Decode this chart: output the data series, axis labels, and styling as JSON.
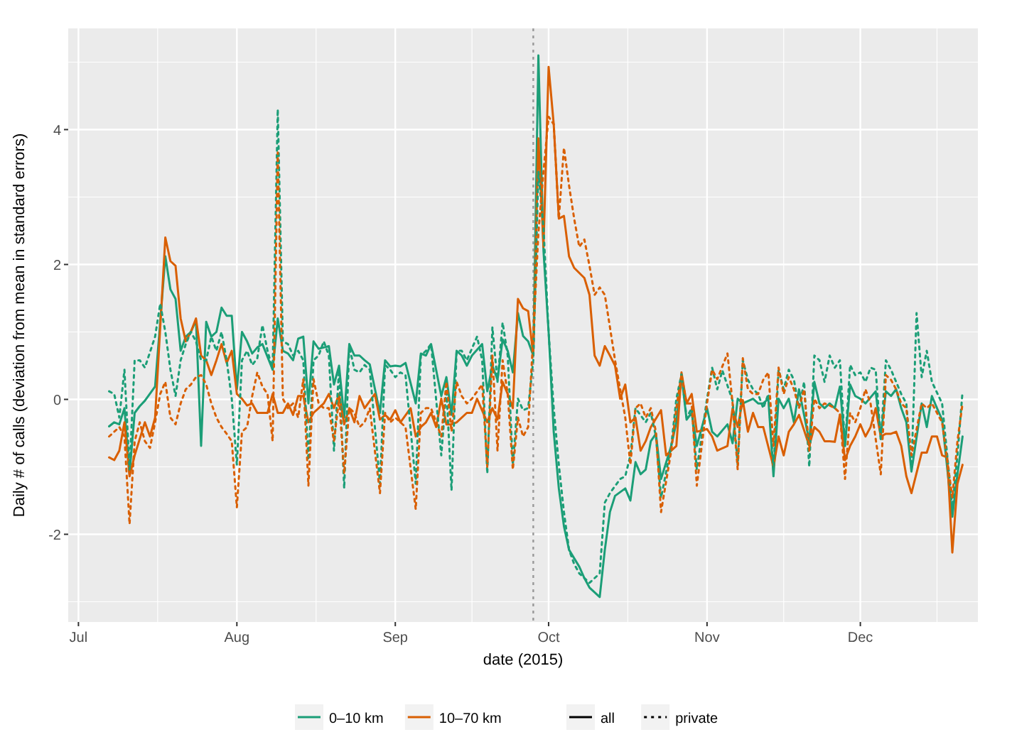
{
  "chart_data": {
    "type": "line",
    "xlabel": "date (2015)",
    "ylabel": "Daily # of calls (deviation from mean in standard errors)",
    "xlim": [
      "2015-06-29",
      "2015-12-24"
    ],
    "ylim": [
      -3.3,
      5.5
    ],
    "xticks": [
      {
        "value": "2015-07-01",
        "label": "Jul"
      },
      {
        "value": "2015-08-01",
        "label": "Aug"
      },
      {
        "value": "2015-09-01",
        "label": "Sep"
      },
      {
        "value": "2015-10-01",
        "label": "Oct"
      },
      {
        "value": "2015-11-01",
        "label": "Nov"
      },
      {
        "value": "2015-12-01",
        "label": "Dec"
      }
    ],
    "yticks": [
      -2,
      0,
      2,
      4
    ],
    "grid": true,
    "legend": "bottom",
    "annotations": [
      "all",
      "private"
    ],
    "ref_lines": [
      {
        "axis": "x",
        "value": "2015-09-28",
        "color": "#999999",
        "line_style": "dotted"
      }
    ],
    "series": [
      {
        "name": "0–10 km",
        "color": "#1b9e77",
        "line_style": "solid",
        "x": [
          "2015-07-07",
          "2015-07-08",
          "2015-07-09",
          "2015-07-10",
          "2015-07-11",
          "2015-07-12",
          "2015-07-13",
          "2015-07-14",
          "2015-07-16",
          "2015-07-18",
          "2015-07-19",
          "2015-07-20",
          "2015-07-21",
          "2015-07-22",
          "2015-07-23",
          "2015-07-24",
          "2015-07-25",
          "2015-07-26",
          "2015-07-27",
          "2015-07-28",
          "2015-07-29",
          "2015-07-30",
          "2015-07-31",
          "2015-08-01",
          "2015-08-02",
          "2015-08-03",
          "2015-08-04",
          "2015-08-05",
          "2015-08-06",
          "2015-08-08",
          "2015-08-09",
          "2015-08-10",
          "2015-08-11",
          "2015-08-12",
          "2015-08-13",
          "2015-08-14",
          "2015-08-15",
          "2015-08-16",
          "2015-08-17",
          "2015-08-18",
          "2015-08-19",
          "2015-08-20",
          "2015-08-21",
          "2015-08-22",
          "2015-08-23",
          "2015-08-24",
          "2015-08-25",
          "2015-08-26",
          "2015-08-27",
          "2015-08-29",
          "2015-08-30",
          "2015-08-31",
          "2015-09-01",
          "2015-09-02",
          "2015-09-03",
          "2015-09-05",
          "2015-09-06",
          "2015-09-07",
          "2015-09-08",
          "2015-09-10",
          "2015-09-11",
          "2015-09-12",
          "2015-09-13",
          "2015-09-14",
          "2015-09-15",
          "2015-09-16",
          "2015-09-18",
          "2015-09-19",
          "2015-09-20",
          "2015-09-21",
          "2015-09-22",
          "2015-09-23",
          "2015-09-24",
          "2015-09-25",
          "2015-09-26",
          "2015-09-27",
          "2015-09-28",
          "2015-09-29",
          "2015-09-30",
          "2015-10-01",
          "2015-10-02",
          "2015-10-03",
          "2015-10-04",
          "2015-10-05",
          "2015-10-07",
          "2015-10-08",
          "2015-10-09",
          "2015-10-11",
          "2015-10-12",
          "2015-10-13",
          "2015-10-14",
          "2015-10-16",
          "2015-10-17",
          "2015-10-18",
          "2015-10-19",
          "2015-10-20",
          "2015-10-21",
          "2015-10-22",
          "2015-10-23",
          "2015-10-25",
          "2015-10-26",
          "2015-10-27",
          "2015-10-28",
          "2015-10-29",
          "2015-10-30",
          "2015-11-01",
          "2015-11-02",
          "2015-11-03",
          "2015-11-05",
          "2015-11-06",
          "2015-11-07",
          "2015-11-08",
          "2015-11-10",
          "2015-11-11",
          "2015-11-12",
          "2015-11-13",
          "2015-11-14",
          "2015-11-15",
          "2015-11-16",
          "2015-11-17",
          "2015-11-18",
          "2015-11-19",
          "2015-11-21",
          "2015-11-22",
          "2015-11-23",
          "2015-11-24",
          "2015-11-25",
          "2015-11-26",
          "2015-11-27",
          "2015-11-28",
          "2015-11-29",
          "2015-11-30",
          "2015-12-01",
          "2015-12-02",
          "2015-12-04",
          "2015-12-05",
          "2015-12-06",
          "2015-12-07",
          "2015-12-08",
          "2015-12-09",
          "2015-12-10",
          "2015-12-11",
          "2015-12-13",
          "2015-12-14",
          "2015-12-15",
          "2015-12-16",
          "2015-12-17",
          "2015-12-19",
          "2015-12-20",
          "2015-12-21"
        ],
        "values": [
          -0.4,
          -0.34,
          -0.37,
          -0.13,
          -1.1,
          -0.2,
          -0.1,
          -0.02,
          0.19,
          2.12,
          1.63,
          1.49,
          0.72,
          0.93,
          1.0,
          1.17,
          -0.69,
          1.15,
          0.93,
          1.0,
          1.36,
          1.24,
          1.24,
          0.15,
          1.0,
          0.86,
          0.68,
          0.77,
          0.82,
          0.44,
          1.2,
          0.72,
          0.68,
          0.58,
          0.9,
          0.93,
          -0.06,
          0.86,
          0.75,
          0.77,
          0.79,
          0.22,
          0.5,
          -0.27,
          0.82,
          0.65,
          0.65,
          0.58,
          0.52,
          -0.2,
          0.58,
          0.49,
          0.5,
          0.49,
          0.54,
          -0.06,
          0.68,
          0.65,
          0.82,
          0.05,
          0.33,
          -0.23,
          0.72,
          0.65,
          0.5,
          0.65,
          0.82,
          0.12,
          0.5,
          0.29,
          0.89,
          0.72,
          0.4,
          1.28,
          0.94,
          0.86,
          0.65,
          5.1,
          2.2,
          1.0,
          -0.48,
          -1.32,
          -1.88,
          -2.23,
          -2.48,
          -2.65,
          -2.79,
          -2.93,
          -2.23,
          -1.67,
          -1.43,
          -1.32,
          -1.5,
          -0.93,
          -1.11,
          -1.04,
          -0.62,
          -0.51,
          -1.18,
          -0.69,
          -0.34,
          0.37,
          -0.3,
          -0.2,
          -0.69,
          -0.13,
          -0.48,
          -0.55,
          -0.37,
          -0.65,
          0.01,
          -0.06,
          0.01,
          -0.06,
          -0.06,
          0.01,
          -1.14,
          0.01,
          -0.13,
          0.01,
          -0.34,
          0.15,
          -0.62,
          0.26,
          -0.06,
          -0.13,
          -0.06,
          -0.13,
          0.19,
          -0.69,
          0.22,
          0.05,
          0.01,
          -0.06,
          0.12,
          -0.55,
          0.12,
          0.05,
          0.15,
          -0.13,
          -0.34,
          -1.07,
          -0.06,
          -0.41,
          0.05,
          -0.13,
          -0.3,
          -1.74,
          -1.11,
          -0.55
        ]
      },
      {
        "name": "10–70 km",
        "color": "#d95f02",
        "line_style": "solid",
        "x": [
          "2015-07-07",
          "2015-07-08",
          "2015-07-09",
          "2015-07-10",
          "2015-07-11",
          "2015-07-12",
          "2015-07-14",
          "2015-07-15",
          "2015-07-16",
          "2015-07-18",
          "2015-07-19",
          "2015-07-20",
          "2015-07-21",
          "2015-07-22",
          "2015-07-23",
          "2015-07-24",
          "2015-07-25",
          "2015-07-26",
          "2015-07-27",
          "2015-07-28",
          "2015-07-29",
          "2015-07-30",
          "2015-07-31",
          "2015-08-01",
          "2015-08-02",
          "2015-08-03",
          "2015-08-04",
          "2015-08-05",
          "2015-08-07",
          "2015-08-08",
          "2015-08-09",
          "2015-08-10",
          "2015-08-11",
          "2015-08-12",
          "2015-08-13",
          "2015-08-14",
          "2015-08-15",
          "2015-08-16",
          "2015-08-17",
          "2015-08-18",
          "2015-08-19",
          "2015-08-20",
          "2015-08-21",
          "2015-08-22",
          "2015-08-23",
          "2015-08-24",
          "2015-08-25",
          "2015-08-26",
          "2015-08-28",
          "2015-08-29",
          "2015-08-30",
          "2015-08-31",
          "2015-09-01",
          "2015-09-02",
          "2015-09-04",
          "2015-09-05",
          "2015-09-06",
          "2015-09-07",
          "2015-09-08",
          "2015-09-09",
          "2015-09-10",
          "2015-09-11",
          "2015-09-12",
          "2015-09-13",
          "2015-09-15",
          "2015-09-16",
          "2015-09-17",
          "2015-09-19",
          "2015-09-20",
          "2015-09-21",
          "2015-09-22",
          "2015-09-23",
          "2015-09-24",
          "2015-09-25",
          "2015-09-26",
          "2015-09-27",
          "2015-09-28",
          "2015-09-29",
          "2015-09-30",
          "2015-10-01",
          "2015-10-02",
          "2015-10-03",
          "2015-10-04",
          "2015-10-05",
          "2015-10-06",
          "2015-10-08",
          "2015-10-09",
          "2015-10-10",
          "2015-10-11",
          "2015-10-12",
          "2015-10-13",
          "2015-10-14",
          "2015-10-15",
          "2015-10-16",
          "2015-10-17",
          "2015-10-18",
          "2015-10-19",
          "2015-10-20",
          "2015-10-21",
          "2015-10-23",
          "2015-10-24",
          "2015-10-25",
          "2015-10-26",
          "2015-10-27",
          "2015-10-28",
          "2015-10-29",
          "2015-10-30",
          "2015-11-01",
          "2015-11-02",
          "2015-11-03",
          "2015-11-05",
          "2015-11-06",
          "2015-11-07",
          "2015-11-08",
          "2015-11-09",
          "2015-11-10",
          "2015-11-11",
          "2015-11-12",
          "2015-11-14",
          "2015-11-15",
          "2015-11-16",
          "2015-11-17",
          "2015-11-18",
          "2015-11-19",
          "2015-11-21",
          "2015-11-22",
          "2015-11-23",
          "2015-11-24",
          "2015-11-25",
          "2015-11-26",
          "2015-11-27",
          "2015-11-28",
          "2015-11-29",
          "2015-11-30",
          "2015-12-01",
          "2015-12-02",
          "2015-12-03",
          "2015-12-04",
          "2015-12-05",
          "2015-12-06",
          "2015-12-07",
          "2015-12-08",
          "2015-12-09",
          "2015-12-10",
          "2015-12-11",
          "2015-12-13",
          "2015-12-14",
          "2015-12-15",
          "2015-12-16",
          "2015-12-17",
          "2015-12-18",
          "2015-12-19",
          "2015-12-20",
          "2015-12-21"
        ],
        "values": [
          -0.86,
          -0.9,
          -0.76,
          -0.34,
          -1.14,
          -0.83,
          -0.34,
          -0.55,
          -0.27,
          2.4,
          2.05,
          1.98,
          1.2,
          0.86,
          1.0,
          1.2,
          0.65,
          0.58,
          0.36,
          0.58,
          0.82,
          0.54,
          0.72,
          0.08,
          0.01,
          -0.09,
          -0.06,
          -0.2,
          -0.2,
          0.08,
          -0.2,
          -0.2,
          -0.06,
          -0.23,
          0.05,
          0.05,
          -0.34,
          -0.2,
          -0.13,
          -0.06,
          0.08,
          -0.13,
          0.08,
          -0.37,
          -0.13,
          -0.34,
          0.05,
          -0.13,
          0.08,
          -0.3,
          -0.23,
          -0.3,
          -0.16,
          -0.34,
          -0.13,
          -0.55,
          -0.41,
          -0.34,
          -0.2,
          -0.41,
          0.01,
          -0.37,
          -0.37,
          -0.34,
          -0.2,
          -0.2,
          0.01,
          -0.34,
          -0.13,
          -0.3,
          0.26,
          0.08,
          -0.13,
          1.49,
          1.35,
          1.31,
          0.65,
          3.87,
          2.26,
          4.93,
          4.08,
          2.68,
          2.72,
          2.12,
          1.95,
          1.8,
          1.55,
          0.65,
          0.5,
          0.79,
          0.65,
          0.5,
          0.01,
          0.22,
          -0.34,
          -0.27,
          -0.76,
          -0.62,
          -0.41,
          -0.16,
          -0.83,
          -0.76,
          -0.69,
          0.4,
          -0.06,
          0.08,
          -0.48,
          -0.44,
          -0.55,
          -0.76,
          -0.69,
          -0.13,
          -0.41,
          -0.01,
          -0.48,
          -0.2,
          -0.41,
          -0.41,
          -1.0,
          -0.55,
          -0.83,
          -0.48,
          -0.37,
          -0.23,
          -0.69,
          -0.41,
          -0.48,
          -0.62,
          -0.62,
          -0.63,
          -0.23,
          -0.9,
          -0.69,
          -0.55,
          -0.37,
          -0.55,
          -0.41,
          -0.13,
          -0.55,
          -0.51,
          -0.51,
          -0.48,
          -0.69,
          -1.14,
          -1.39,
          -0.79,
          -0.79,
          -0.55,
          -0.55,
          -0.83,
          -0.86,
          -2.27,
          -1.25,
          -0.97
        ]
      },
      {
        "color": "#1b9e77",
        "line_style": "dotted",
        "x": [
          "2015-07-07",
          "2015-07-08",
          "2015-07-09",
          "2015-07-10",
          "2015-07-11",
          "2015-07-12",
          "2015-07-13",
          "2015-07-14",
          "2015-07-16",
          "2015-07-17",
          "2015-07-18",
          "2015-07-19",
          "2015-07-20",
          "2015-07-21",
          "2015-07-22",
          "2015-07-23",
          "2015-07-24",
          "2015-07-25",
          "2015-07-26",
          "2015-07-27",
          "2015-07-28",
          "2015-07-29",
          "2015-07-30",
          "2015-07-31",
          "2015-08-01",
          "2015-08-02",
          "2015-08-03",
          "2015-08-04",
          "2015-08-05",
          "2015-08-06",
          "2015-08-07",
          "2015-08-08",
          "2015-08-09",
          "2015-08-10",
          "2015-08-11",
          "2015-08-12",
          "2015-08-13",
          "2015-08-14",
          "2015-08-15",
          "2015-08-16",
          "2015-08-17",
          "2015-08-18",
          "2015-08-19",
          "2015-08-20",
          "2015-08-21",
          "2015-08-22",
          "2015-08-23",
          "2015-08-24",
          "2015-08-25",
          "2015-08-26",
          "2015-08-27",
          "2015-08-29",
          "2015-08-30",
          "2015-08-31",
          "2015-09-01",
          "2015-09-02",
          "2015-09-03",
          "2015-09-05",
          "2015-09-06",
          "2015-09-07",
          "2015-09-08",
          "2015-09-10",
          "2015-09-11",
          "2015-09-12",
          "2015-09-13",
          "2015-09-14",
          "2015-09-15",
          "2015-09-17",
          "2015-09-18",
          "2015-09-19",
          "2015-09-20",
          "2015-09-21",
          "2015-09-22",
          "2015-09-23",
          "2015-09-24",
          "2015-09-25",
          "2015-09-26",
          "2015-09-27",
          "2015-09-28",
          "2015-09-29",
          "2015-09-30",
          "2015-10-01",
          "2015-10-02",
          "2015-10-03",
          "2015-10-04",
          "2015-10-05",
          "2015-10-06",
          "2015-10-07",
          "2015-10-09",
          "2015-10-11",
          "2015-10-12",
          "2015-10-13",
          "2015-10-15",
          "2015-10-16",
          "2015-10-17",
          "2015-10-18",
          "2015-10-20",
          "2015-10-21",
          "2015-10-22",
          "2015-10-23",
          "2015-10-25",
          "2015-10-26",
          "2015-10-27",
          "2015-10-28",
          "2015-10-29",
          "2015-10-30",
          "2015-11-01",
          "2015-11-02",
          "2015-11-03",
          "2015-11-04",
          "2015-11-06",
          "2015-11-07",
          "2015-11-08",
          "2015-11-09",
          "2015-11-10",
          "2015-11-11",
          "2015-11-12",
          "2015-11-13",
          "2015-11-14",
          "2015-11-15",
          "2015-11-16",
          "2015-11-17",
          "2015-11-18",
          "2015-11-19",
          "2015-11-20",
          "2015-11-21",
          "2015-11-22",
          "2015-11-23",
          "2015-11-24",
          "2015-11-25",
          "2015-11-26",
          "2015-11-27",
          "2015-11-28",
          "2015-11-29",
          "2015-11-30",
          "2015-12-01",
          "2015-12-02",
          "2015-12-03",
          "2015-12-04",
          "2015-12-05",
          "2015-12-06",
          "2015-12-07",
          "2015-12-08",
          "2015-12-09",
          "2015-12-10",
          "2015-12-11",
          "2015-12-12",
          "2015-12-13",
          "2015-12-14",
          "2015-12-15",
          "2015-12-17",
          "2015-12-19",
          "2015-12-20",
          "2015-12-21"
        ],
        "values": [
          0.12,
          0.08,
          -0.27,
          0.44,
          -1.04,
          0.58,
          0.58,
          0.47,
          0.93,
          1.42,
          1.0,
          0.44,
          0.05,
          0.58,
          0.82,
          1.0,
          0.86,
          0.58,
          0.58,
          0.93,
          0.72,
          1.0,
          0.58,
          0.01,
          -0.97,
          0.58,
          0.72,
          0.51,
          0.61,
          1.1,
          0.72,
          0.44,
          4.3,
          0.86,
          0.82,
          0.65,
          0.72,
          0.58,
          -0.9,
          0.58,
          0.65,
          0.86,
          0.65,
          -0.76,
          0.44,
          -1.32,
          0.79,
          0.44,
          0.4,
          0.51,
          0.44,
          -1.25,
          0.51,
          0.44,
          0.33,
          0.4,
          0.36,
          -1.25,
          0.65,
          0.72,
          0.82,
          -0.83,
          0.15,
          -1.35,
          0.72,
          0.72,
          0.58,
          0.93,
          0.58,
          -1.1,
          1.07,
          0.26,
          1.14,
          0.65,
          -0.97,
          0.01,
          -0.16,
          -0.13,
          0.58,
          3.38,
          2.54,
          1.0,
          -0.13,
          -0.97,
          -1.67,
          -2.23,
          -2.44,
          -2.58,
          -2.72,
          -2.58,
          -1.53,
          -1.39,
          -1.18,
          -1.14,
          -0.83,
          -0.13,
          -0.34,
          -0.2,
          -0.55,
          -1.46,
          -0.69,
          0.01,
          0.37,
          -0.27,
          -0.13,
          -1.04,
          0.01,
          0.47,
          0.15,
          0.43,
          -0.02,
          -0.97,
          0.58,
          0.29,
          0.15,
          0.08,
          -0.13,
          0.08,
          -1.04,
          0.44,
          0.15,
          0.44,
          0.29,
          -0.13,
          0.26,
          -1.0,
          0.65,
          0.58,
          0.26,
          0.65,
          0.47,
          0.58,
          -0.69,
          0.51,
          0.36,
          0.4,
          0.26,
          0.47,
          0.44,
          -0.62,
          0.58,
          0.44,
          0.26,
          0.08,
          -0.06,
          -1.04,
          1.28,
          0.33,
          0.72,
          0.26,
          -0.06,
          -1.6,
          -0.83,
          0.12
        ]
      },
      {
        "color": "#d95f02",
        "line_style": "dotted",
        "x": [
          "2015-07-07",
          "2015-07-08",
          "2015-07-09",
          "2015-07-10",
          "2015-07-11",
          "2015-07-12",
          "2015-07-13",
          "2015-07-14",
          "2015-07-15",
          "2015-07-16",
          "2015-07-17",
          "2015-07-18",
          "2015-07-19",
          "2015-07-20",
          "2015-07-21",
          "2015-07-22",
          "2015-07-23",
          "2015-07-24",
          "2015-07-25",
          "2015-07-26",
          "2015-07-27",
          "2015-07-28",
          "2015-07-29",
          "2015-07-30",
          "2015-07-31",
          "2015-08-01",
          "2015-08-02",
          "2015-08-03",
          "2015-08-04",
          "2015-08-05",
          "2015-08-06",
          "2015-08-07",
          "2015-08-08",
          "2015-08-09",
          "2015-08-10",
          "2015-08-11",
          "2015-08-12",
          "2015-08-13",
          "2015-08-14",
          "2015-08-15",
          "2015-08-16",
          "2015-08-17",
          "2015-08-18",
          "2015-08-19",
          "2015-08-20",
          "2015-08-21",
          "2015-08-22",
          "2015-08-23",
          "2015-08-24",
          "2015-08-25",
          "2015-08-26",
          "2015-08-27",
          "2015-08-29",
          "2015-08-30",
          "2015-08-31",
          "2015-09-01",
          "2015-09-02",
          "2015-09-03",
          "2015-09-05",
          "2015-09-06",
          "2015-09-07",
          "2015-09-08",
          "2015-09-10",
          "2015-09-11",
          "2015-09-12",
          "2015-09-13",
          "2015-09-14",
          "2015-09-15",
          "2015-09-16",
          "2015-09-18",
          "2015-09-19",
          "2015-09-20",
          "2015-09-21",
          "2015-09-22",
          "2015-09-23",
          "2015-09-24",
          "2015-09-25",
          "2015-09-26",
          "2015-09-27",
          "2015-09-28",
          "2015-09-29",
          "2015-09-30",
          "2015-10-01",
          "2015-10-02",
          "2015-10-03",
          "2015-10-04",
          "2015-10-05",
          "2015-10-06",
          "2015-10-07",
          "2015-10-08",
          "2015-10-09",
          "2015-10-10",
          "2015-10-11",
          "2015-10-12",
          "2015-10-13",
          "2015-10-14",
          "2015-10-15",
          "2015-10-16",
          "2015-10-17",
          "2015-10-18",
          "2015-10-19",
          "2015-10-20",
          "2015-10-21",
          "2015-10-22",
          "2015-10-23",
          "2015-10-25",
          "2015-10-26",
          "2015-10-27",
          "2015-10-28",
          "2015-10-29",
          "2015-10-30",
          "2015-11-01",
          "2015-11-02",
          "2015-11-03",
          "2015-11-05",
          "2015-11-06",
          "2015-11-07",
          "2015-11-08",
          "2015-11-09",
          "2015-11-10",
          "2015-11-11",
          "2015-11-12",
          "2015-11-13",
          "2015-11-14",
          "2015-11-15",
          "2015-11-16",
          "2015-11-17",
          "2015-11-18",
          "2015-11-19",
          "2015-11-20",
          "2015-11-21",
          "2015-11-22",
          "2015-11-23",
          "2015-11-24",
          "2015-11-25",
          "2015-11-26",
          "2015-11-27",
          "2015-11-28",
          "2015-11-29",
          "2015-11-30",
          "2015-12-01",
          "2015-12-02",
          "2015-12-03",
          "2015-12-05",
          "2015-12-06",
          "2015-12-07",
          "2015-12-08",
          "2015-12-09",
          "2015-12-10",
          "2015-12-11",
          "2015-12-13",
          "2015-12-14",
          "2015-12-15",
          "2015-12-16",
          "2015-12-17",
          "2015-12-19",
          "2015-12-20",
          "2015-12-21"
        ],
        "values": [
          -0.55,
          -0.48,
          -0.41,
          -0.55,
          -1.85,
          -0.62,
          -0.34,
          -0.62,
          -0.72,
          -0.34,
          0.08,
          0.26,
          -0.27,
          -0.37,
          -0.06,
          0.15,
          0.22,
          0.33,
          0.36,
          0.22,
          -0.06,
          -0.27,
          -0.41,
          -0.51,
          -0.62,
          -1.6,
          -0.48,
          -0.41,
          0.05,
          0.4,
          0.19,
          0.08,
          -0.62,
          3.66,
          0.01,
          -0.13,
          -0.06,
          -0.27,
          0.3,
          -1.28,
          0.3,
          -0.06,
          -0.13,
          -0.13,
          -0.62,
          0.01,
          -1.1,
          -0.13,
          -0.2,
          -0.41,
          -0.34,
          -0.13,
          -1.39,
          -0.2,
          -0.34,
          -0.27,
          -0.34,
          -0.41,
          -1.63,
          -0.2,
          -0.13,
          -0.13,
          -0.55,
          0.26,
          -0.48,
          0.26,
          0.05,
          -0.06,
          0.01,
          0.22,
          -1.0,
          0.65,
          -0.76,
          0.58,
          0.08,
          -1.04,
          -0.27,
          -0.55,
          -0.41,
          0.93,
          2.47,
          3.38,
          4.19,
          4.08,
          2.68,
          3.73,
          3.17,
          2.68,
          2.26,
          2.37,
          1.98,
          1.55,
          1.66,
          1.55,
          1.07,
          0.58,
          0.15,
          -0.27,
          -0.97,
          -0.13,
          -0.06,
          -0.27,
          -0.13,
          -0.48,
          -1.67,
          -0.76,
          -0.13,
          0.37,
          -0.06,
          -0.06,
          -1.28,
          -0.06,
          0.44,
          0.3,
          0.68,
          -0.06,
          -1.04,
          0.61,
          0.15,
          0.08,
          0.08,
          0.29,
          0.4,
          -0.69,
          0.47,
          0.08,
          0.33,
          0.15,
          -0.13,
          0.15,
          -0.76,
          0.01,
          -0.13,
          -0.06,
          -0.09,
          -0.13,
          -0.2,
          -1.18,
          -0.2,
          -0.34,
          -0.13,
          0.15,
          -0.06,
          -1.11,
          0.36,
          0.29,
          0.15,
          -0.06,
          -0.13,
          -0.83,
          -0.06,
          -0.13,
          -0.06,
          -0.2,
          -0.34,
          -1.46,
          -0.62,
          -0.06
        ]
      }
    ]
  }
}
